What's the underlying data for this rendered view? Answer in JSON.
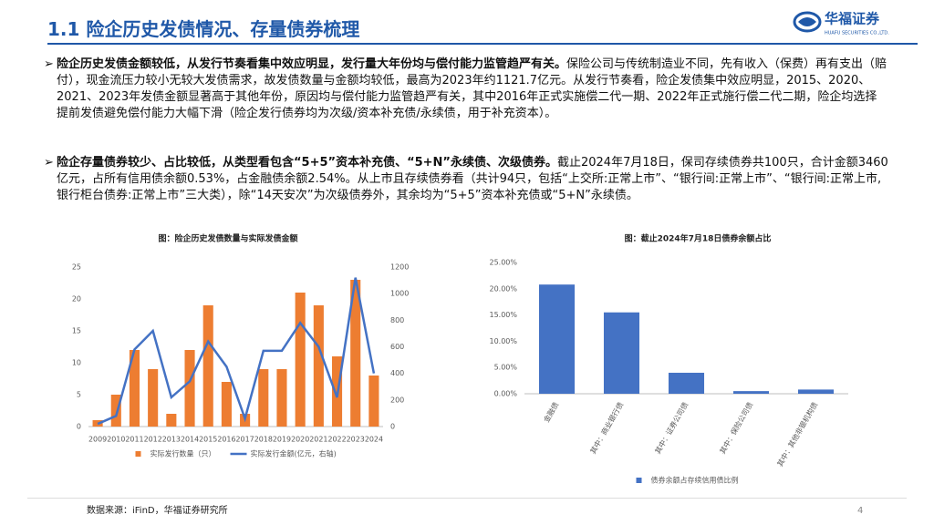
{
  "header": {
    "title": "1.1 险企历史发债情况、存量债券梳理",
    "logo_cn": "华福证券",
    "logo_en": "HUAFU SECURITIES CO.,LTD."
  },
  "bullets": [
    {
      "bold": "险企历史发债金额较低，从发行节奏看集中效应明显，发行量大年份均与偿付能力监管趋严有关。",
      "text": "保险公司与传统制造业不同，先有收入（保费）再有支出（赔付），现金流压力较小无较大发债需求，故发债数量与金额均较低，最高为2023年约1121.7亿元。从发行节奏看，险企发债集中效应明显，2015、2020、2021、2023年发债金额显著高于其他年份，原因均与偿付能力监管趋严有关，其中2016年正式实施偿二代一期、2022年正式施行偿二代二期，险企均选择提前发债避免偿付能力大幅下滑（险企发行债券均为次级/资本补充债/永续债，用于补充资本）。"
    },
    {
      "bold": "险企存量债券较少、占比较低，从类型看包含“5+5”资本补充债、“5+N”永续债、次级债券。",
      "text": "截止2024年7月18日，保司存续债券共100只，合计金额3460亿元，占所有信用债余额0.53%，占金融债余额2.54%。从上市且存续债券看（共计94只，包括“上交所:正常上市”、“银行间:正常上市”、“银行间:正常上市,银行柜台债券:正常上市”三大类），除“14天安次”为次级债券外，其余均为“5+5”资本补充债或“5+N”永续债。"
    }
  ],
  "chart_data": [
    {
      "type": "bar",
      "title": "图：险企历史发债数量与实际发债金额",
      "categories": [
        "2009",
        "2010",
        "2011",
        "2012",
        "2013",
        "2014",
        "2015",
        "2016",
        "2017",
        "2018",
        "2019",
        "2020",
        "2021",
        "2022",
        "2023",
        "2024"
      ],
      "series": [
        {
          "name": "实际发行数量（只）",
          "type": "bar",
          "color": "#ed7d31",
          "values": [
            1,
            5,
            12,
            9,
            2,
            12,
            19,
            7,
            2,
            9,
            9,
            21,
            19,
            11,
            23,
            8
          ]
        },
        {
          "name": "实际发行金额(亿元，右轴)",
          "type": "line",
          "axis": "y2",
          "color": "#4472c4",
          "values": [
            20,
            80,
            580,
            720,
            220,
            340,
            640,
            450,
            60,
            570,
            570,
            780,
            600,
            220,
            1120,
            400
          ]
        }
      ],
      "ylim": [
        0,
        25
      ],
      "yticks": [
        0,
        5,
        10,
        15,
        20,
        25
      ],
      "y2lim": [
        0,
        1200
      ],
      "y2ticks": [
        0,
        200,
        400,
        600,
        800,
        1000,
        1200
      ],
      "grid": false,
      "legend": "bottom"
    },
    {
      "type": "bar",
      "title": "图：截止2024年7月18日债券余额占比",
      "categories": [
        "金融债",
        "其中：商业银行债",
        "其中：证券公司债",
        "其中：保险公司债",
        "其中：其他非银机构债"
      ],
      "series": [
        {
          "name": "债券余额占存续信用债比例",
          "color": "#4472c4",
          "values": [
            20.8,
            15.5,
            4.0,
            0.5,
            0.8
          ]
        }
      ],
      "ylim": [
        0,
        25
      ],
      "yticks": [
        {
          "value": 0,
          "label": "0.00%"
        },
        {
          "value": 5,
          "label": "5.00%"
        },
        {
          "value": 10,
          "label": "10.00%"
        },
        {
          "value": 15,
          "label": "15.00%"
        },
        {
          "value": 20,
          "label": "20.00%"
        },
        {
          "value": 25,
          "label": "25.00%"
        }
      ],
      "grid": false,
      "legend": "bottom"
    }
  ],
  "source": "数据来源：iFinD，华福证券研究所",
  "page_number": "4"
}
